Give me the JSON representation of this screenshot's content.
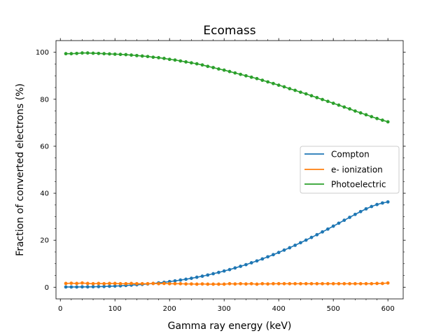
{
  "chart_data": {
    "type": "line",
    "title": "Ecomass",
    "xlabel": "Gamma ray energy (keV)",
    "ylabel": "Fraction of converted electrons (%)",
    "xlim": [
      -8,
      628
    ],
    "ylim": [
      -4.97,
      104.97
    ],
    "xticks": [
      0,
      100,
      200,
      300,
      400,
      500,
      600
    ],
    "yticks": [
      0,
      20,
      40,
      60,
      80,
      100
    ],
    "grid": false,
    "legend_position": "center-right",
    "x": [
      10,
      20,
      30,
      40,
      50,
      60,
      70,
      80,
      90,
      100,
      110,
      120,
      130,
      140,
      150,
      160,
      170,
      180,
      190,
      200,
      210,
      220,
      230,
      240,
      250,
      260,
      270,
      280,
      290,
      300,
      310,
      320,
      330,
      340,
      350,
      360,
      370,
      380,
      390,
      400,
      410,
      420,
      430,
      440,
      450,
      460,
      470,
      480,
      490,
      500,
      510,
      520,
      530,
      540,
      550,
      560,
      570,
      580,
      590,
      600
    ],
    "series": [
      {
        "name": "Compton",
        "color": "#1f77b4",
        "values": [
          0.1,
          0.1,
          0.1,
          0.15,
          0.15,
          0.2,
          0.25,
          0.3,
          0.4,
          0.5,
          0.6,
          0.75,
          0.9,
          1.05,
          1.2,
          1.4,
          1.6,
          1.85,
          2.1,
          2.4,
          2.7,
          3.05,
          3.4,
          3.8,
          4.25,
          4.7,
          5.2,
          5.75,
          6.3,
          6.9,
          7.5,
          8.2,
          8.9,
          9.6,
          10.4,
          11.2,
          12.05,
          12.95,
          13.85,
          14.8,
          15.8,
          16.8,
          17.85,
          18.95,
          20.05,
          21.2,
          22.35,
          23.55,
          24.75,
          26.0,
          27.25,
          28.5,
          29.75,
          31.0,
          32.2,
          33.35,
          34.35,
          35.2,
          35.85,
          36.3
        ]
      },
      {
        "name": "e- ionization",
        "color": "#ff7f0e",
        "values": [
          1.6,
          1.7,
          1.6,
          1.8,
          1.6,
          1.5,
          1.6,
          1.5,
          1.6,
          1.6,
          1.5,
          1.5,
          1.6,
          1.5,
          1.5,
          1.5,
          1.6,
          1.5,
          1.6,
          1.5,
          1.5,
          1.5,
          1.4,
          1.4,
          1.3,
          1.4,
          1.3,
          1.3,
          1.3,
          1.3,
          1.5,
          1.4,
          1.5,
          1.4,
          1.5,
          1.3,
          1.5,
          1.4,
          1.5,
          1.5,
          1.5,
          1.5,
          1.5,
          1.5,
          1.5,
          1.5,
          1.5,
          1.5,
          1.5,
          1.5,
          1.5,
          1.5,
          1.5,
          1.5,
          1.5,
          1.5,
          1.5,
          1.6,
          1.6,
          1.8
        ]
      },
      {
        "name": "Photoelectric",
        "color": "#2ca02c",
        "values": [
          99.4,
          99.4,
          99.5,
          99.7,
          99.7,
          99.6,
          99.5,
          99.4,
          99.3,
          99.2,
          99.1,
          99.0,
          98.8,
          98.6,
          98.4,
          98.2,
          97.9,
          97.7,
          97.4,
          97.0,
          96.7,
          96.3,
          95.9,
          95.5,
          95.1,
          94.6,
          94.0,
          93.5,
          92.9,
          92.4,
          91.8,
          91.2,
          90.6,
          90.0,
          89.4,
          88.8,
          88.1,
          87.4,
          86.7,
          86.0,
          85.3,
          84.5,
          83.8,
          83.0,
          82.3,
          81.5,
          80.7,
          79.9,
          79.1,
          78.3,
          77.5,
          76.7,
          75.9,
          75.0,
          74.2,
          73.4,
          72.6,
          71.8,
          71.1,
          70.4
        ]
      }
    ]
  }
}
